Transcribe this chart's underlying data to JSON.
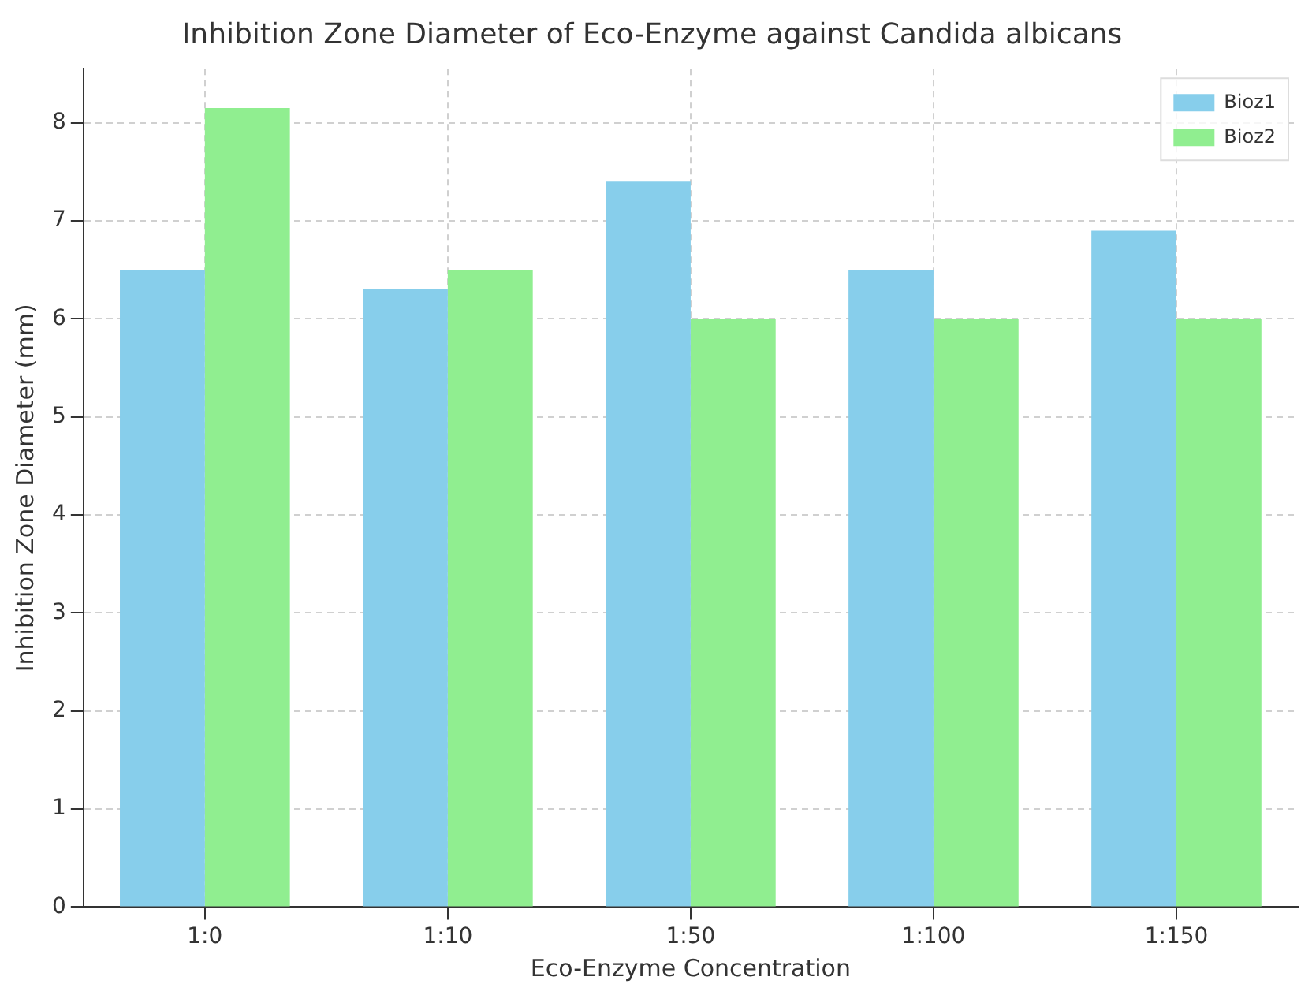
{
  "chart_data": {
    "type": "bar",
    "title": "Inhibition Zone Diameter of Eco-Enzyme against Candida albicans",
    "xlabel": "Eco-Enzyme Concentration",
    "ylabel": "Inhibition Zone Diameter (mm)",
    "categories": [
      "1:0",
      "1:10",
      "1:50",
      "1:100",
      "1:150"
    ],
    "series": [
      {
        "name": "Bioz1",
        "color": "#87ceeb",
        "values": [
          6.5,
          6.3,
          7.4,
          6.5,
          6.9
        ]
      },
      {
        "name": "Bioz2",
        "color": "#90ee90",
        "values": [
          8.15,
          6.5,
          6.0,
          6.0,
          6.0
        ]
      }
    ],
    "ylim": [
      0,
      8.55
    ],
    "yticks": [
      0,
      1,
      2,
      3,
      4,
      5,
      6,
      7,
      8
    ],
    "grid": true,
    "legend": "top right"
  }
}
